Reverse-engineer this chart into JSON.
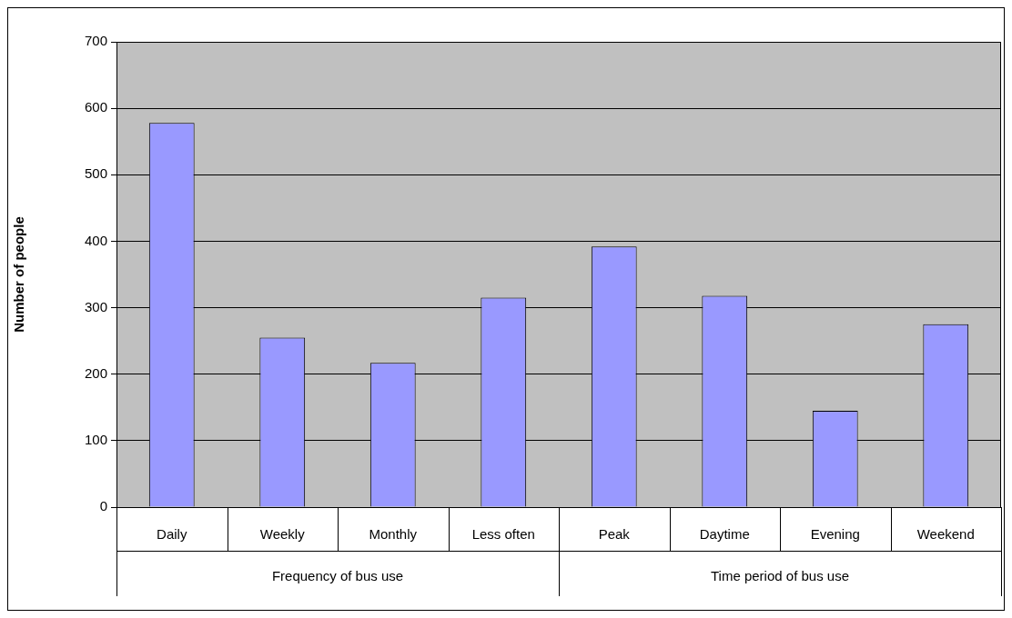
{
  "chart_data": {
    "type": "bar",
    "ylabel": "Number of people",
    "categories": [
      "Daily",
      "Weekly",
      "Monthly",
      "Less often",
      "Peak",
      "Daytime",
      "Evening",
      "Weekend"
    ],
    "values": [
      578,
      255,
      217,
      315,
      392,
      318,
      145,
      275
    ],
    "color": "#9999ff",
    "ylim": [
      0,
      700
    ],
    "yticks": [
      0,
      100,
      200,
      300,
      400,
      500,
      600,
      700
    ],
    "grid": "y",
    "legend": false,
    "annotations": [
      "Frequency of bus use",
      "Time period of bus use"
    ]
  }
}
